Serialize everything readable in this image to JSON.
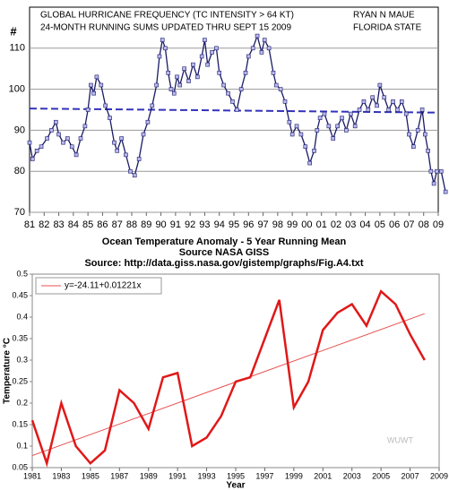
{
  "chart_data": [
    {
      "type": "line",
      "title": "GLOBAL HURRICANE FREQUENCY (TC INTENSITY > 64 KT)",
      "subtitle": "24-MONTH RUNNING SUMS UPDATED THRU SEPT 15 2009",
      "annotations": [
        "RYAN N MAUE",
        "FLORIDA STATE"
      ],
      "ylabel": "#",
      "grid": true,
      "xlim": [
        1981,
        2009
      ],
      "xticks": [
        {
          "value": 1981,
          "label": "81"
        },
        {
          "value": 1982,
          "label": "82"
        },
        {
          "value": 1983,
          "label": "83"
        },
        {
          "value": 1984,
          "label": "84"
        },
        {
          "value": 1985,
          "label": "85"
        },
        {
          "value": 1986,
          "label": "86"
        },
        {
          "value": 1987,
          "label": "87"
        },
        {
          "value": 1988,
          "label": "88"
        },
        {
          "value": 1989,
          "label": "89"
        },
        {
          "value": 1990,
          "label": "90"
        },
        {
          "value": 1991,
          "label": "91"
        },
        {
          "value": 1992,
          "label": "92"
        },
        {
          "value": 1993,
          "label": "93"
        },
        {
          "value": 1994,
          "label": "94"
        },
        {
          "value": 1995,
          "label": "95"
        },
        {
          "value": 1996,
          "label": "96"
        },
        {
          "value": 1997,
          "label": "97"
        },
        {
          "value": 1998,
          "label": "98"
        },
        {
          "value": 1999,
          "label": "99"
        },
        {
          "value": 2000,
          "label": "00"
        },
        {
          "value": 2001,
          "label": "01"
        },
        {
          "value": 2002,
          "label": "02"
        },
        {
          "value": 2003,
          "label": "03"
        },
        {
          "value": 2004,
          "label": "04"
        },
        {
          "value": 2005,
          "label": "05"
        },
        {
          "value": 2006,
          "label": "06"
        },
        {
          "value": 2007,
          "label": "07"
        },
        {
          "value": 2008,
          "label": "08"
        },
        {
          "value": 2009,
          "label": "09"
        }
      ],
      "ylim": [
        70,
        120
      ],
      "yticks": [
        70,
        80,
        90,
        100,
        110
      ],
      "x": [
        1981.0,
        1981.2,
        1981.5,
        1981.8,
        1982.2,
        1982.5,
        1982.8,
        1983.0,
        1983.3,
        1983.6,
        1983.9,
        1984.2,
        1984.5,
        1984.8,
        1985.0,
        1985.2,
        1985.4,
        1985.6,
        1985.9,
        1986.2,
        1986.5,
        1986.8,
        1987.0,
        1987.3,
        1987.6,
        1987.9,
        1988.2,
        1988.5,
        1988.8,
        1989.1,
        1989.4,
        1989.7,
        1989.9,
        1990.1,
        1990.3,
        1990.5,
        1990.7,
        1990.9,
        1991.1,
        1991.3,
        1991.6,
        1991.9,
        1992.2,
        1992.5,
        1992.8,
        1993.0,
        1993.2,
        1993.5,
        1993.8,
        1994.0,
        1994.3,
        1994.6,
        1994.9,
        1995.2,
        1995.5,
        1995.8,
        1996.0,
        1996.3,
        1996.6,
        1996.9,
        1997.1,
        1997.4,
        1997.7,
        1997.9,
        1998.2,
        1998.5,
        1998.8,
        1999.0,
        1999.3,
        1999.6,
        1999.9,
        2000.2,
        2000.5,
        2000.7,
        2000.9,
        2001.2,
        2001.5,
        2001.8,
        2002.1,
        2002.4,
        2002.7,
        2003.0,
        2003.3,
        2003.6,
        2003.9,
        2004.2,
        2004.5,
        2004.8,
        2005.0,
        2005.3,
        2005.6,
        2005.9,
        2006.2,
        2006.5,
        2006.8,
        2007.0,
        2007.3,
        2007.6,
        2007.9,
        2008.1,
        2008.3,
        2008.5,
        2008.7,
        2008.9,
        2009.2,
        2009.5
      ],
      "series": [
        {
          "color": "#1a1a66",
          "marker_color": "#b8b8f0",
          "values": [
            87,
            83,
            85,
            86,
            88,
            90,
            92,
            89,
            87,
            88,
            86,
            84,
            88,
            91,
            95,
            101,
            99,
            103,
            101,
            96,
            93,
            87,
            85,
            88,
            84,
            80,
            79,
            83,
            89,
            92,
            96,
            101,
            108,
            112,
            110,
            104,
            100,
            99,
            103,
            101,
            105,
            102,
            106,
            103,
            108,
            112,
            106,
            109,
            110,
            104,
            101,
            99,
            97,
            95,
            100,
            104,
            108,
            110,
            113,
            109,
            112,
            110,
            104,
            101,
            100,
            97,
            92,
            89,
            91,
            89,
            86,
            82,
            85,
            90,
            93,
            94,
            91,
            88,
            91,
            93,
            90,
            94,
            91,
            95,
            97,
            95,
            98,
            96,
            101,
            98,
            95,
            97,
            95,
            97,
            94,
            89,
            86,
            90,
            95,
            89,
            85,
            80,
            77,
            80,
            80,
            75
          ]
        }
      ],
      "trend": {
        "color": "#3333bb",
        "x": [
          1981,
          2009
        ],
        "values": [
          95.3,
          94.3
        ]
      }
    },
    {
      "type": "line",
      "title": "Ocean Temperature Anomaly - 5 Year Running Mean",
      "subtitle": [
        "Source NASA GISS",
        "Source: http://data.giss.nasa.gov/gistemp/graphs/Fig.A4.txt"
      ],
      "xlabel": "Year",
      "ylabel": "Temperature °C",
      "annotations": [
        "WUWT"
      ],
      "grid": false,
      "legend": "upper left",
      "xlim": [
        1981,
        2009
      ],
      "xticks": [
        1981,
        1983,
        1985,
        1987,
        1989,
        1991,
        1993,
        1995,
        1997,
        1999,
        2001,
        2003,
        2005,
        2007,
        2009
      ],
      "ylim": [
        0.05,
        0.5
      ],
      "yticks": [
        0.05,
        0.1,
        0.15,
        0.2,
        0.25,
        0.3,
        0.35,
        0.4,
        0.45,
        0.5
      ],
      "x": [
        1981,
        1982,
        1983,
        1984,
        1985,
        1986,
        1987,
        1988,
        1989,
        1990,
        1991,
        1992,
        1993,
        1994,
        1995,
        1996,
        1997,
        1998,
        1999,
        2000,
        2001,
        2002,
        2003,
        2004,
        2005,
        2006,
        2007,
        2008
      ],
      "series": [
        {
          "color": "#e01818",
          "values": [
            0.16,
            0.06,
            0.2,
            0.1,
            0.06,
            0.09,
            0.23,
            0.2,
            0.14,
            0.26,
            0.27,
            0.1,
            0.12,
            0.17,
            0.25,
            0.26,
            0.35,
            0.44,
            0.19,
            0.25,
            0.37,
            0.41,
            0.43,
            0.38,
            0.46,
            0.43,
            0.36,
            0.3
          ]
        }
      ],
      "trend": {
        "name": "y=-24.11+0.01221x",
        "color": "#e85050",
        "x": [
          1981,
          2008
        ],
        "values": [
          0.078,
          0.408
        ]
      }
    }
  ]
}
